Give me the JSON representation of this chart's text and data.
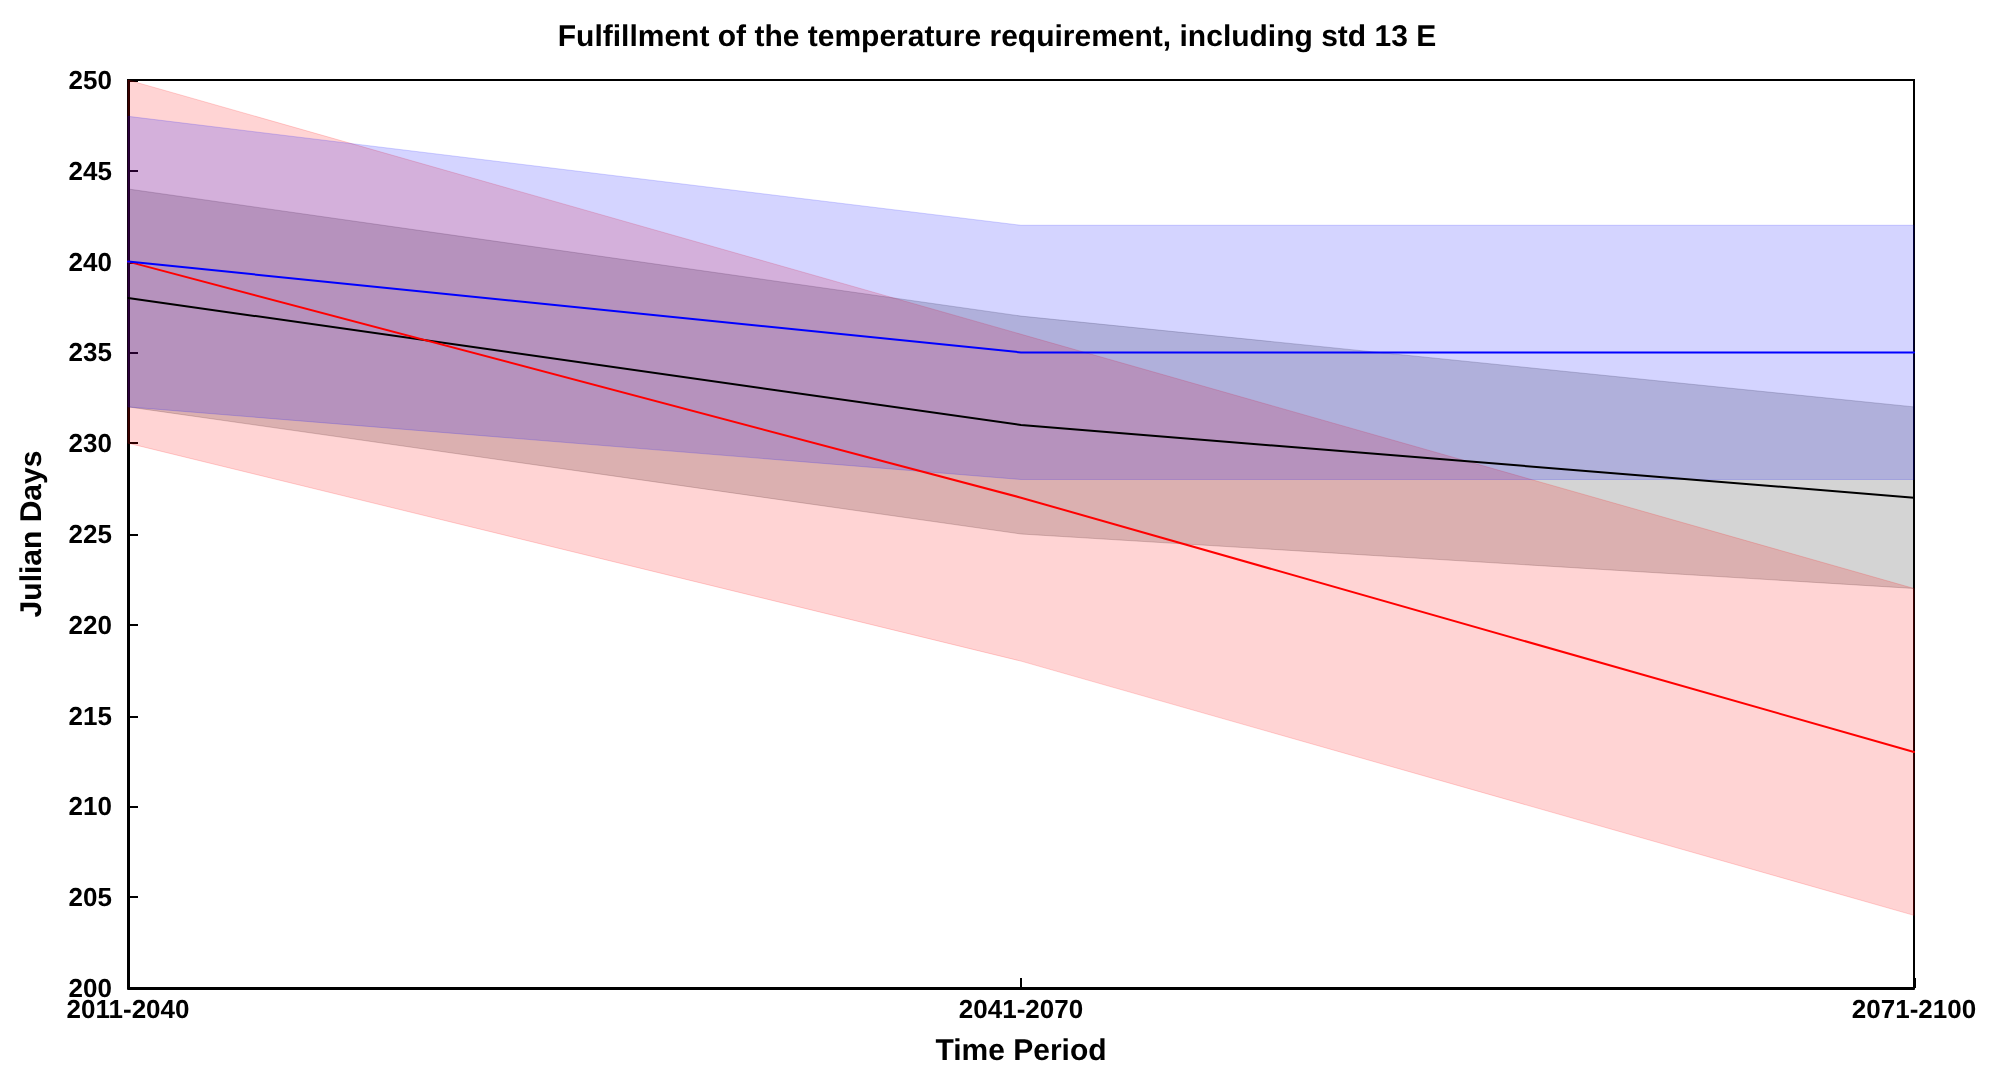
{
  "chart_data": {
    "type": "line",
    "title": "Fulfillment of the temperature requirement, including std 13 E",
    "xlabel": "Time Period",
    "ylabel": "Julian Days",
    "categories": [
      "2011-2040",
      "2041-2070",
      "2071-2100"
    ],
    "series": [
      {
        "color": "#000000",
        "values": [
          238,
          231,
          227
        ],
        "lower": [
          232,
          225,
          222
        ],
        "upper": [
          244,
          237,
          232
        ]
      },
      {
        "color": "#ff0000",
        "values": [
          240,
          227,
          213
        ],
        "lower": [
          230,
          218,
          204
        ],
        "upper": [
          250,
          236,
          222
        ]
      },
      {
        "color": "#0000ff",
        "values": [
          240,
          235,
          235
        ],
        "lower": [
          232,
          228,
          228
        ],
        "upper": [
          248,
          242,
          242
        ]
      }
    ],
    "ylim": [
      200,
      250
    ],
    "yticks": [
      200,
      205,
      210,
      215,
      220,
      225,
      230,
      235,
      240,
      245,
      250
    ],
    "grid": false,
    "marker": "none",
    "line_style": "solid"
  }
}
